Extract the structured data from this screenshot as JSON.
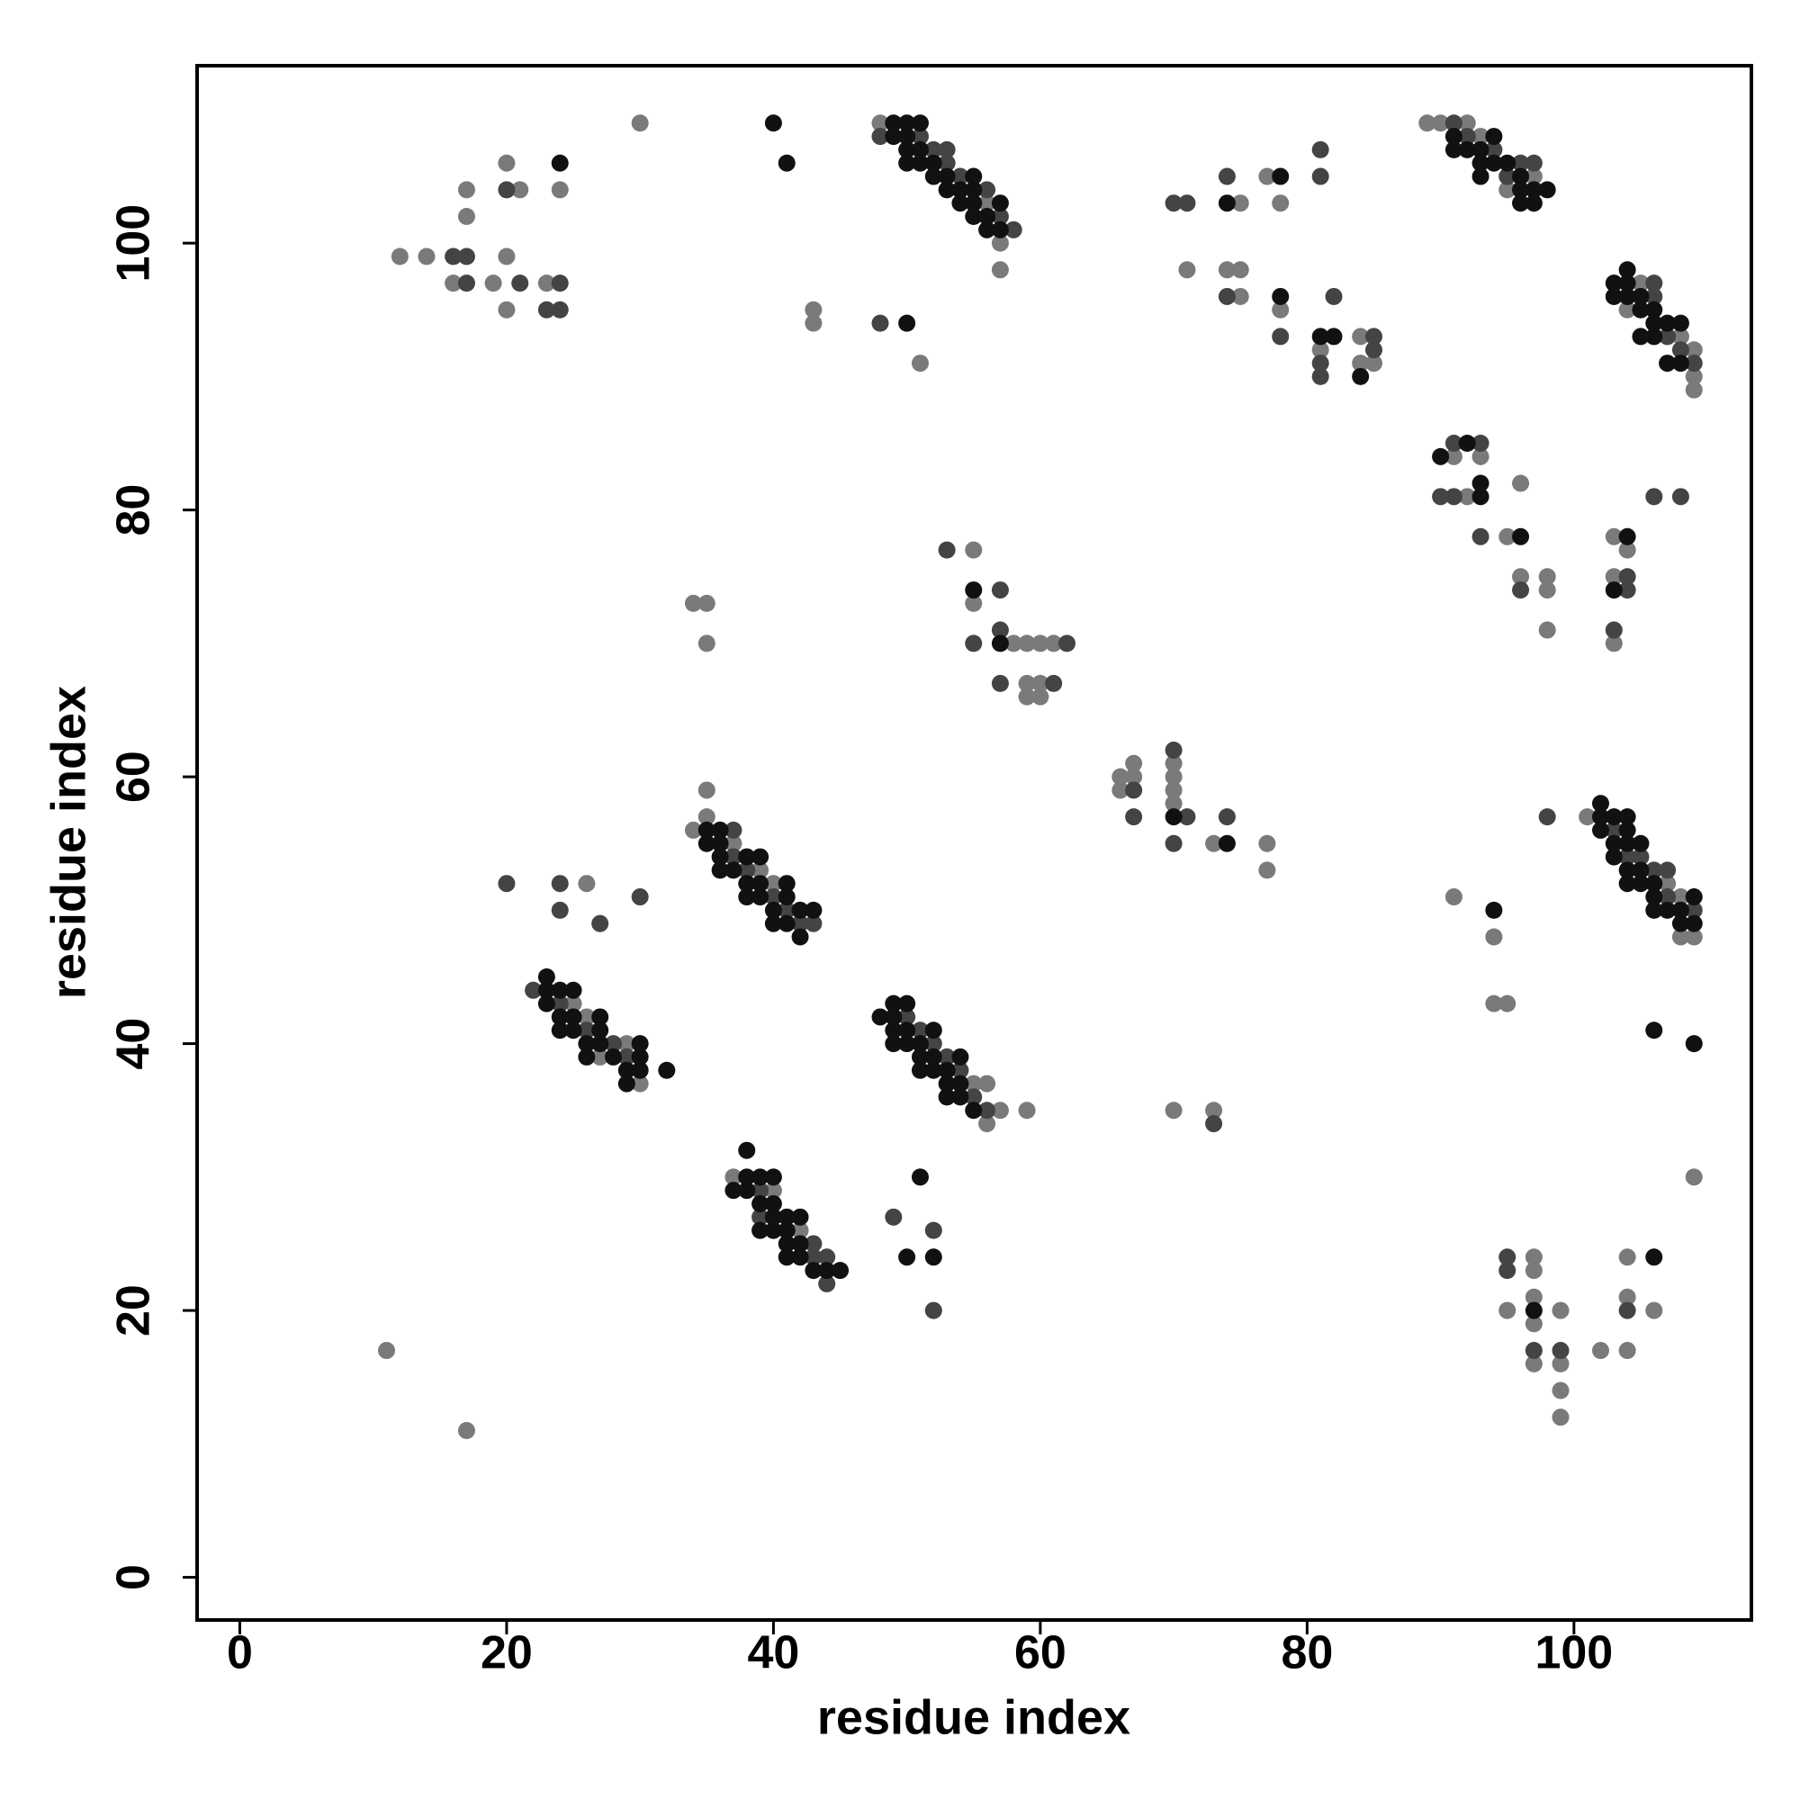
{
  "chart_data": {
    "type": "scatter",
    "xlabel": "residue index",
    "ylabel": "residue index",
    "xlim": [
      -3.2,
      113.3
    ],
    "ylim": [
      -3.2,
      113.3
    ],
    "xticks": [
      0,
      20,
      40,
      60,
      80,
      100
    ],
    "yticks": [
      0,
      20,
      40,
      60,
      80,
      100
    ],
    "series": [
      {
        "color": "#7a7a7a",
        "x": [
          12,
          14,
          17,
          17,
          16,
          19,
          20,
          20,
          21,
          20,
          23,
          24,
          30,
          48,
          56,
          57,
          57,
          43,
          43,
          51,
          75,
          77,
          78,
          71,
          74,
          75,
          75,
          78,
          81,
          84,
          84,
          85,
          89,
          90,
          92,
          93,
          97,
          95,
          105,
          104,
          108,
          109,
          109,
          109,
          91,
          93,
          92,
          96,
          95,
          96,
          98,
          98,
          98,
          103,
          104,
          103,
          103,
          55,
          55,
          58,
          59,
          60,
          61,
          59,
          60,
          59,
          60,
          34,
          35,
          35,
          66,
          66,
          67,
          67,
          70,
          70,
          70,
          70,
          73,
          77,
          77,
          35,
          35,
          34,
          37,
          39,
          40,
          26,
          25,
          26,
          29,
          27,
          30,
          55,
          56,
          57,
          56,
          59,
          70,
          73,
          101,
          107,
          108,
          108,
          109,
          91,
          94,
          94,
          95,
          109,
          37,
          40,
          42,
          97,
          97,
          95,
          97,
          97,
          97,
          99,
          99,
          99,
          99,
          102,
          104,
          104,
          104,
          106,
          11,
          17
        ],
        "values": [
          99,
          99,
          104,
          102,
          97,
          97,
          99,
          95,
          104,
          106,
          97,
          104,
          109,
          109,
          103,
          100,
          98,
          95,
          94,
          91,
          103,
          105,
          103,
          98,
          98,
          98,
          96,
          95,
          92,
          93,
          91,
          91,
          109,
          109,
          109,
          108,
          105,
          104,
          97,
          95,
          93,
          92,
          90,
          89,
          84,
          84,
          81,
          82,
          78,
          75,
          75,
          74,
          71,
          78,
          77,
          75,
          70,
          77,
          73,
          70,
          70,
          70,
          70,
          66,
          66,
          67,
          67,
          73,
          73,
          70,
          60,
          59,
          61,
          60,
          61,
          60,
          59,
          58,
          55,
          55,
          53,
          59,
          57,
          56,
          55,
          53,
          52,
          52,
          43,
          42,
          40,
          39,
          37,
          37,
          37,
          35,
          34,
          35,
          35,
          35,
          57,
          52,
          51,
          48,
          48,
          51,
          48,
          43,
          43,
          30,
          30,
          29,
          26,
          24,
          23,
          20,
          21,
          19,
          16,
          20,
          16,
          14,
          12,
          17,
          24,
          21,
          17,
          20,
          17,
          11
        ]
      },
      {
        "color": "#444444",
        "x": [
          16,
          17,
          17,
          21,
          20,
          24,
          23,
          24,
          48,
          51,
          52,
          53,
          53,
          54,
          56,
          57,
          58,
          48,
          70,
          71,
          74,
          81,
          81,
          74,
          78,
          81,
          81,
          82,
          85,
          85,
          91,
          92,
          94,
          96,
          97,
          95,
          106,
          106,
          107,
          108,
          109,
          91,
          93,
          90,
          91,
          93,
          96,
          106,
          108,
          104,
          104,
          103,
          53,
          57,
          57,
          62,
          55,
          57,
          61,
          67,
          67,
          70,
          71,
          70,
          74,
          37,
          37,
          38,
          40,
          41,
          42,
          43,
          20,
          24,
          24,
          27,
          30,
          22,
          24,
          26,
          28,
          29,
          50,
          51,
          52,
          53,
          54,
          55,
          56,
          73,
          103,
          104,
          105,
          106,
          107,
          107,
          109,
          98,
          39,
          39,
          43,
          43,
          44,
          44,
          49,
          52,
          52,
          95,
          95,
          97,
          99,
          104
        ],
        "values": [
          99,
          99,
          97,
          97,
          104,
          97,
          95,
          95,
          108,
          108,
          107,
          107,
          106,
          105,
          104,
          102,
          101,
          94,
          103,
          103,
          105,
          107,
          105,
          96,
          93,
          91,
          90,
          96,
          93,
          92,
          109,
          108,
          107,
          106,
          106,
          105,
          97,
          96,
          93,
          92,
          91,
          85,
          85,
          81,
          81,
          78,
          74,
          81,
          81,
          75,
          74,
          71,
          77,
          74,
          71,
          70,
          70,
          67,
          67,
          59,
          57,
          62,
          57,
          55,
          57,
          56,
          54,
          53,
          51,
          50,
          49,
          49,
          52,
          52,
          50,
          49,
          51,
          44,
          43,
          41,
          40,
          39,
          42,
          41,
          40,
          39,
          38,
          36,
          35,
          34,
          56,
          54,
          54,
          53,
          53,
          51,
          50,
          57,
          29,
          27,
          25,
          24,
          24,
          22,
          27,
          26,
          20,
          24,
          23,
          17,
          17,
          20
        ]
      },
      {
        "color": "#111111",
        "x": [
          24,
          40,
          41,
          49,
          50,
          51,
          49,
          50,
          50,
          51,
          50,
          51,
          52,
          52,
          53,
          55,
          53,
          54,
          55,
          54,
          55,
          57,
          55,
          56,
          56,
          57,
          50,
          74,
          78,
          78,
          81,
          82,
          84,
          91,
          94,
          91,
          92,
          93,
          93,
          94,
          95,
          93,
          96,
          96,
          97,
          98,
          96,
          97,
          104,
          103,
          104,
          103,
          104,
          105,
          105,
          106,
          106,
          107,
          108,
          105,
          106,
          107,
          108,
          92,
          90,
          93,
          93,
          96,
          104,
          103,
          55,
          57,
          70,
          74,
          35,
          36,
          35,
          36,
          36,
          38,
          39,
          36,
          37,
          38,
          39,
          41,
          38,
          39,
          41,
          40,
          42,
          43,
          40,
          41,
          42,
          23,
          23,
          24,
          25,
          23,
          24,
          25,
          27,
          24,
          25,
          27,
          26,
          27,
          30,
          26,
          28,
          30,
          29,
          30,
          32,
          29,
          49,
          50,
          48,
          49,
          49,
          50,
          52,
          49,
          50,
          51,
          51,
          52,
          54,
          51,
          52,
          53,
          53,
          54,
          53,
          54,
          55,
          102,
          102,
          103,
          104,
          102,
          104,
          103,
          104,
          105,
          103,
          104,
          105,
          104,
          105,
          106,
          106,
          109,
          106,
          107,
          108,
          108,
          109,
          94,
          106,
          109,
          38,
          38,
          39,
          40,
          37,
          38,
          39,
          40,
          40,
          41,
          42,
          39,
          40,
          41,
          41,
          42,
          41,
          42,
          43,
          44,
          45,
          51,
          50,
          52,
          97,
          106
        ],
        "values": [
          106,
          109,
          106,
          109,
          109,
          109,
          108,
          108,
          107,
          107,
          106,
          106,
          106,
          105,
          105,
          105,
          104,
          104,
          104,
          103,
          103,
          103,
          102,
          102,
          101,
          101,
          94,
          103,
          105,
          96,
          93,
          93,
          90,
          108,
          108,
          107,
          107,
          107,
          106,
          106,
          106,
          105,
          105,
          104,
          104,
          104,
          103,
          103,
          98,
          97,
          97,
          96,
          96,
          96,
          95,
          95,
          94,
          94,
          94,
          93,
          93,
          91,
          91,
          85,
          84,
          81,
          82,
          78,
          78,
          74,
          74,
          70,
          57,
          55,
          56,
          56,
          55,
          55,
          54,
          54,
          54,
          53,
          53,
          52,
          52,
          52,
          51,
          51,
          51,
          50,
          50,
          50,
          49,
          49,
          48,
          45,
          44,
          44,
          44,
          43,
          42,
          42,
          42,
          41,
          41,
          41,
          40,
          40,
          40,
          39,
          39,
          39,
          38,
          38,
          38,
          37,
          43,
          43,
          42,
          42,
          41,
          41,
          41,
          40,
          40,
          40,
          39,
          39,
          39,
          38,
          38,
          38,
          37,
          37,
          36,
          36,
          35,
          58,
          57,
          57,
          57,
          56,
          56,
          55,
          55,
          55,
          54,
          53,
          53,
          52,
          52,
          52,
          51,
          51,
          50,
          50,
          50,
          49,
          49,
          50,
          41,
          40,
          32,
          30,
          30,
          30,
          29,
          29,
          28,
          28,
          27,
          27,
          27,
          26,
          26,
          26,
          25,
          25,
          24,
          24,
          23,
          23,
          23,
          30,
          24,
          24,
          20,
          24
        ]
      }
    ]
  }
}
